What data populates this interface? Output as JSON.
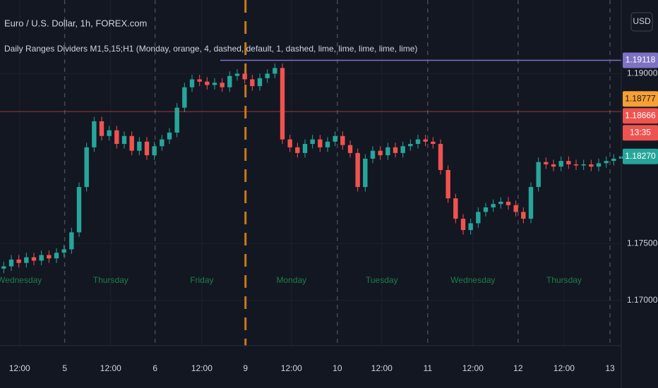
{
  "chart_data": {
    "type": "candlestick",
    "title": "Euro / U.S. Dollar, 1h, FOREX.com",
    "subtitle": "Daily Ranges Dividers M1,5,15;H1 (Monday, orange, 4, dashed, default, 1, dashed, lime, lime, lime, lime, lime)",
    "currency_button": "USD",
    "up_color": "#26a69a",
    "down_color": "#ef5350",
    "open": [
      1.1728,
      1.173,
      1.1736,
      1.1733,
      1.1738,
      1.1735,
      1.174,
      1.1737,
      1.1742,
      1.1745,
      1.176,
      1.18,
      1.1835,
      1.1858,
      1.1845,
      1.185,
      1.1838,
      1.1845,
      1.1832,
      1.184,
      1.1828,
      1.1836,
      1.1842,
      1.1848,
      1.187,
      1.1888,
      1.1895,
      1.1893,
      1.189,
      1.1892,
      1.1888,
      1.1898,
      1.19,
      1.1895,
      1.1889,
      1.1896,
      1.19,
      1.1905,
      1.1842,
      1.1835,
      1.183,
      1.1838,
      1.1842,
      1.1835,
      1.184,
      1.1845,
      1.1837,
      1.183,
      1.18,
      1.1825,
      1.1832,
      1.1828,
      1.1835,
      1.183,
      1.1836,
      1.1838,
      1.1842,
      1.184,
      1.1838,
      1.1815,
      1.179,
      1.1772,
      1.1762,
      1.1768,
      1.1778,
      1.1782,
      1.1785,
      1.1787,
      1.1784,
      1.1778,
      1.1772,
      1.18,
      1.1822,
      1.182,
      1.1818,
      1.1823,
      1.182,
      1.1819,
      1.182,
      1.1818,
      1.1821,
      1.1823,
      1.1825
    ],
    "high": [
      1.1734,
      1.174,
      1.174,
      1.1742,
      1.1742,
      1.1744,
      1.1744,
      1.1746,
      1.1749,
      1.1764,
      1.1804,
      1.1839,
      1.1862,
      1.1862,
      1.1854,
      1.1854,
      1.1849,
      1.1849,
      1.1844,
      1.1844,
      1.184,
      1.1846,
      1.1852,
      1.1874,
      1.1892,
      1.1899,
      1.1899,
      1.1897,
      1.1896,
      1.1896,
      1.1902,
      1.1904,
      1.1904,
      1.1899,
      1.19,
      1.1904,
      1.1909,
      1.1909,
      1.1846,
      1.1839,
      1.1842,
      1.1846,
      1.1846,
      1.1844,
      1.1849,
      1.1849,
      1.1841,
      1.1834,
      1.1829,
      1.1836,
      1.1836,
      1.1839,
      1.1839,
      1.184,
      1.1842,
      1.1846,
      1.1846,
      1.1844,
      1.1842,
      1.1819,
      1.1794,
      1.1776,
      1.1772,
      1.1782,
      1.1786,
      1.1789,
      1.1791,
      1.1791,
      1.1788,
      1.1782,
      1.1804,
      1.1826,
      1.1826,
      1.1824,
      1.1827,
      1.1827,
      1.1824,
      1.1824,
      1.1824,
      1.1825,
      1.1827,
      1.1829,
      1.1831
    ],
    "low": [
      1.1724,
      1.1726,
      1.1729,
      1.1729,
      1.1731,
      1.1731,
      1.1733,
      1.1733,
      1.1738,
      1.1741,
      1.1756,
      1.1796,
      1.1831,
      1.1841,
      1.1841,
      1.1834,
      1.1834,
      1.1828,
      1.1828,
      1.1824,
      1.1824,
      1.1832,
      1.1838,
      1.1844,
      1.1866,
      1.1884,
      1.1889,
      1.1886,
      1.1886,
      1.1884,
      1.1884,
      1.1894,
      1.1891,
      1.1885,
      1.1885,
      1.1892,
      1.1896,
      1.1838,
      1.1831,
      1.1826,
      1.1826,
      1.1834,
      1.1831,
      1.1831,
      1.1836,
      1.1833,
      1.1826,
      1.1796,
      1.1796,
      1.1821,
      1.1824,
      1.1824,
      1.1826,
      1.1826,
      1.1832,
      1.1834,
      1.1836,
      1.1834,
      1.1811,
      1.1786,
      1.1768,
      1.1758,
      1.1758,
      1.1764,
      1.1774,
      1.1778,
      1.1781,
      1.178,
      1.1774,
      1.1768,
      1.1768,
      1.1796,
      1.1816,
      1.1814,
      1.1814,
      1.1816,
      1.1815,
      1.1815,
      1.1814,
      1.1814,
      1.1817,
      1.1819,
      1.1821
    ],
    "close": [
      1.173,
      1.1736,
      1.1733,
      1.1738,
      1.1735,
      1.174,
      1.1737,
      1.1742,
      1.1745,
      1.176,
      1.18,
      1.1835,
      1.1858,
      1.1845,
      1.185,
      1.1838,
      1.1845,
      1.1832,
      1.184,
      1.1828,
      1.1836,
      1.1842,
      1.1848,
      1.187,
      1.1888,
      1.1895,
      1.1893,
      1.189,
      1.1892,
      1.1888,
      1.1898,
      1.19,
      1.1895,
      1.1889,
      1.1896,
      1.19,
      1.1905,
      1.1842,
      1.1835,
      1.183,
      1.1838,
      1.1842,
      1.1835,
      1.184,
      1.1845,
      1.1837,
      1.183,
      1.18,
      1.1825,
      1.1832,
      1.1828,
      1.1835,
      1.183,
      1.1836,
      1.1838,
      1.1842,
      1.184,
      1.1838,
      1.1815,
      1.179,
      1.1772,
      1.1762,
      1.1768,
      1.1778,
      1.1782,
      1.1785,
      1.1787,
      1.1784,
      1.1778,
      1.1772,
      1.18,
      1.1822,
      1.182,
      1.1818,
      1.1823,
      1.182,
      1.1819,
      1.182,
      1.1818,
      1.1821,
      1.1823,
      1.1825,
      1.1827
    ],
    "xlim": [
      0,
      82.5
    ],
    "xticks": [
      {
        "value": 2.6,
        "label": "12:00"
      },
      {
        "value": 8.6,
        "label": "5"
      },
      {
        "value": 14.7,
        "label": "12:00"
      },
      {
        "value": 20.6,
        "label": "6"
      },
      {
        "value": 26.8,
        "label": "12:00"
      },
      {
        "value": 32.6,
        "label": "9"
      },
      {
        "value": 38.7,
        "label": "12:00"
      },
      {
        "value": 44.8,
        "label": "10"
      },
      {
        "value": 50.7,
        "label": "12:00"
      },
      {
        "value": 56.8,
        "label": "11"
      },
      {
        "value": 62.8,
        "label": "12:00"
      },
      {
        "value": 68.8,
        "label": "12"
      },
      {
        "value": 74.9,
        "label": "12:00"
      },
      {
        "value": 81,
        "label": "13"
      }
    ],
    "ylim": [
      1.166,
      1.1965
    ],
    "yticks": [
      {
        "value": 1.19,
        "label": "1.19000"
      },
      {
        "value": 1.175,
        "label": "1.17500"
      },
      {
        "value": 1.17,
        "label": "1.17000"
      }
    ],
    "day_labels": [
      "Wednesday",
      "Thursday",
      "Friday",
      "Monday",
      "Tuesday",
      "Wednesday",
      "Thursday"
    ],
    "day_label_color": "#1b7f45",
    "price_badges": [
      {
        "value": 1.19118,
        "label": "1.19118",
        "color": "#7e72c4"
      },
      {
        "value": 1.18777,
        "label": "1.18777",
        "color": "#f7a033"
      },
      {
        "value": 1.18666,
        "label": "1.18666",
        "color": "#ef5350"
      },
      {
        "value": 1.1827,
        "label": "1.18270",
        "color": "#26a69a"
      }
    ],
    "countdown": "13:35",
    "grid": true
  }
}
